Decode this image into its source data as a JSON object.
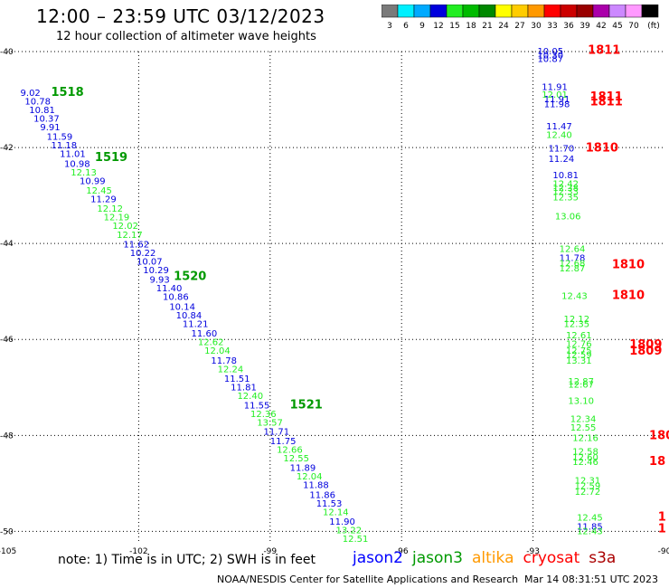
{
  "header": {
    "title": "12:00 – 23:59 UTC 03/12/2023",
    "subtitle": "12 hour collection of altimeter wave heights"
  },
  "footer": {
    "note": "note:  1) Time is in UTC; 2) SWH is in feet",
    "credit": "NOAA/NESDIS Center for Satellite Applications and Research",
    "timestamp": "Mar 14 08:31:51 UTC 2023"
  },
  "satellites": [
    {
      "name": "jason2",
      "color": "#0000ff"
    },
    {
      "name": "jason3",
      "color": "#009900"
    },
    {
      "name": "altika",
      "color": "#ff9900"
    },
    {
      "name": "cryosat",
      "color": "#ff0000"
    },
    {
      "name": "s3a",
      "color": "#aa0000"
    }
  ],
  "colorbar": {
    "ticks": [
      "3",
      "6",
      "9",
      "12",
      "15",
      "18",
      "21",
      "24",
      "27",
      "30",
      "33",
      "36",
      "39",
      "42",
      "45",
      "70",
      "(ft)"
    ],
    "colors": [
      "#7a7a7a",
      "#00f0ff",
      "#00aaff",
      "#0000dd",
      "#22ee22",
      "#00bb00",
      "#008800",
      "#ffff00",
      "#ffcc00",
      "#ff9900",
      "#ff0000",
      "#cc0000",
      "#990000",
      "#aa00aa",
      "#cc88ff",
      "#ff99ff",
      "#000000"
    ]
  },
  "chart_data": {
    "type": "scatter",
    "title": "12:00 – 23:59 UTC 03/12/2023",
    "xlim": [
      -105,
      -90
    ],
    "ylim": [
      -50.2,
      -40
    ],
    "x_ticks": [
      "-105",
      "-102",
      "-99",
      "-96",
      "-93",
      "-90"
    ],
    "y_ticks": [
      "-40",
      "-42",
      "-44",
      "-46",
      "-48",
      "-50"
    ],
    "grid": true,
    "series": [
      {
        "name": "jason3",
        "track": "diagonal",
        "time_labels": [
          {
            "text": "1518",
            "x": -104.0,
            "y": -40.92
          },
          {
            "text": "1519",
            "x": -103.0,
            "y": -42.28
          },
          {
            "text": "1520",
            "x": -101.2,
            "y": -44.76
          },
          {
            "text": "1521",
            "x": -98.55,
            "y": -47.44
          }
        ],
        "points": [
          {
            "x": -104.7,
            "y": -40.92,
            "v": "9.02",
            "c": "#0000dd"
          },
          {
            "x": -104.6,
            "y": -41.1,
            "v": "10.78",
            "c": "#0000dd"
          },
          {
            "x": -104.5,
            "y": -41.28,
            "v": "10.81",
            "c": "#0000dd"
          },
          {
            "x": -104.4,
            "y": -41.46,
            "v": "10.37",
            "c": "#0000dd"
          },
          {
            "x": -104.25,
            "y": -41.64,
            "v": "9.91",
            "c": "#0000dd"
          },
          {
            "x": -104.1,
            "y": -41.84,
            "v": "11.59",
            "c": "#0000dd"
          },
          {
            "x": -104.0,
            "y": -42.02,
            "v": "11.18",
            "c": "#0000dd"
          },
          {
            "x": -103.8,
            "y": -42.2,
            "v": "11.01",
            "c": "#0000dd"
          },
          {
            "x": -103.7,
            "y": -42.4,
            "v": "10.98",
            "c": "#0000dd"
          },
          {
            "x": -103.55,
            "y": -42.58,
            "v": "12.13",
            "c": "#22ee22"
          },
          {
            "x": -103.35,
            "y": -42.76,
            "v": "10.99",
            "c": "#0000dd"
          },
          {
            "x": -103.2,
            "y": -42.96,
            "v": "12.45",
            "c": "#22ee22"
          },
          {
            "x": -103.1,
            "y": -43.14,
            "v": "11.29",
            "c": "#0000dd"
          },
          {
            "x": -102.95,
            "y": -43.34,
            "v": "12.12",
            "c": "#22ee22"
          },
          {
            "x": -102.8,
            "y": -43.52,
            "v": "12.19",
            "c": "#22ee22"
          },
          {
            "x": -102.6,
            "y": -43.7,
            "v": "12.02",
            "c": "#22ee22"
          },
          {
            "x": -102.5,
            "y": -43.88,
            "v": "12.17",
            "c": "#22ee22"
          },
          {
            "x": -102.35,
            "y": -44.08,
            "v": "11.62",
            "c": "#0000dd"
          },
          {
            "x": -102.2,
            "y": -44.26,
            "v": "10.22",
            "c": "#0000dd"
          },
          {
            "x": -102.05,
            "y": -44.44,
            "v": "10.07",
            "c": "#0000dd"
          },
          {
            "x": -101.9,
            "y": -44.62,
            "v": "10.29",
            "c": "#0000dd"
          },
          {
            "x": -101.75,
            "y": -44.82,
            "v": "9.93",
            "c": "#0000dd"
          },
          {
            "x": -101.6,
            "y": -45.0,
            "v": "11.40",
            "c": "#0000dd"
          },
          {
            "x": -101.45,
            "y": -45.18,
            "v": "10.86",
            "c": "#0000dd"
          },
          {
            "x": -101.3,
            "y": -45.38,
            "v": "10.14",
            "c": "#0000dd"
          },
          {
            "x": -101.15,
            "y": -45.56,
            "v": "10.84",
            "c": "#0000dd"
          },
          {
            "x": -101.0,
            "y": -45.74,
            "v": "11.21",
            "c": "#0000dd"
          },
          {
            "x": -100.8,
            "y": -45.94,
            "v": "11.60",
            "c": "#0000dd"
          },
          {
            "x": -100.65,
            "y": -46.12,
            "v": "12.62",
            "c": "#22ee22"
          },
          {
            "x": -100.5,
            "y": -46.3,
            "v": "12.04",
            "c": "#22ee22"
          },
          {
            "x": -100.35,
            "y": -46.5,
            "v": "11.78",
            "c": "#0000dd"
          },
          {
            "x": -100.2,
            "y": -46.68,
            "v": "12.24",
            "c": "#22ee22"
          },
          {
            "x": -100.05,
            "y": -46.88,
            "v": "11.51",
            "c": "#0000dd"
          },
          {
            "x": -99.9,
            "y": -47.06,
            "v": "11.81",
            "c": "#0000dd"
          },
          {
            "x": -99.75,
            "y": -47.24,
            "v": "12.40",
            "c": "#22ee22"
          },
          {
            "x": -99.6,
            "y": -47.44,
            "v": "11.55",
            "c": "#0000dd"
          },
          {
            "x": -99.45,
            "y": -47.62,
            "v": "12.36",
            "c": "#22ee22"
          },
          {
            "x": -99.3,
            "y": -47.8,
            "v": "13.57",
            "c": "#22ee22"
          },
          {
            "x": -99.15,
            "y": -47.98,
            "v": "11.71",
            "c": "#0000dd"
          },
          {
            "x": -99.0,
            "y": -48.18,
            "v": "11.75",
            "c": "#0000dd"
          },
          {
            "x": -98.85,
            "y": -48.36,
            "v": "12.66",
            "c": "#22ee22"
          },
          {
            "x": -98.7,
            "y": -48.54,
            "v": "12.55",
            "c": "#22ee22"
          },
          {
            "x": -98.55,
            "y": -48.74,
            "v": "11.89",
            "c": "#0000dd"
          },
          {
            "x": -98.4,
            "y": -48.92,
            "v": "12.04",
            "c": "#22ee22"
          },
          {
            "x": -98.25,
            "y": -49.1,
            "v": "11.88",
            "c": "#0000dd"
          },
          {
            "x": -98.1,
            "y": -49.3,
            "v": "11.86",
            "c": "#0000dd"
          },
          {
            "x": -97.95,
            "y": -49.48,
            "v": "11.53",
            "c": "#0000dd"
          },
          {
            "x": -97.8,
            "y": -49.66,
            "v": "12.14",
            "c": "#22ee22"
          },
          {
            "x": -97.65,
            "y": -49.86,
            "v": "11.90",
            "c": "#0000dd"
          },
          {
            "x": -97.5,
            "y": -50.04,
            "v": "13.22",
            "c": "#22ee22"
          },
          {
            "x": -97.35,
            "y": -50.22,
            "v": "12.51",
            "c": "#22ee22"
          }
        ]
      },
      {
        "name": "cryosat",
        "track": "right",
        "time_labels": [
          {
            "text": "1811",
            "x": -91.75,
            "y": -40.05,
            "c": "#ff0000"
          },
          {
            "text": "1811",
            "x": -91.7,
            "y": -41.02,
            "c": "#ff0000"
          },
          {
            "text": "1811",
            "x": -91.7,
            "y": -41.12,
            "c": "#ff0000"
          },
          {
            "text": "1810",
            "x": -91.8,
            "y": -42.08,
            "c": "#ff0000"
          },
          {
            "text": "1810",
            "x": -91.2,
            "y": -44.52,
            "c": "#ff0000"
          },
          {
            "text": "1810",
            "x": -91.2,
            "y": -45.16,
            "c": "#ff0000"
          },
          {
            "text": "1809",
            "x": -90.8,
            "y": -46.18,
            "c": "#ff0000"
          },
          {
            "text": "1809",
            "x": -90.8,
            "y": -46.32,
            "c": "#ff0000"
          },
          {
            "text": "180",
            "x": -90.35,
            "y": -48.08,
            "c": "#ff0000"
          },
          {
            "text": "18",
            "x": -90.35,
            "y": -48.62,
            "c": "#ff0000"
          },
          {
            "text": "1",
            "x": -90.15,
            "y": -49.78,
            "c": "#ff0000"
          },
          {
            "text": "1",
            "x": -90.15,
            "y": -50.02,
            "c": "#ff0000"
          }
        ],
        "points": [
          {
            "x": -92.9,
            "y": -40.06,
            "v": "10.05",
            "c": "#0000dd"
          },
          {
            "x": -92.9,
            "y": -40.14,
            "v": "10.30",
            "c": "#0000dd"
          },
          {
            "x": -92.9,
            "y": -40.22,
            "v": "10.87",
            "c": "#0000dd"
          },
          {
            "x": -92.8,
            "y": -40.8,
            "v": "11.91",
            "c": "#0000dd"
          },
          {
            "x": -92.8,
            "y": -40.96,
            "v": "12.01",
            "c": "#22ee22"
          },
          {
            "x": -92.75,
            "y": -41.06,
            "v": "11.91",
            "c": "#0000dd"
          },
          {
            "x": -92.75,
            "y": -41.16,
            "v": "11.98",
            "c": "#0000dd"
          },
          {
            "x": -92.7,
            "y": -41.62,
            "v": "11.47",
            "c": "#0000dd"
          },
          {
            "x": -92.7,
            "y": -41.8,
            "v": "12.40",
            "c": "#22ee22"
          },
          {
            "x": -92.65,
            "y": -42.08,
            "v": "11.70",
            "c": "#0000dd"
          },
          {
            "x": -92.65,
            "y": -42.3,
            "v": "11.24",
            "c": "#0000dd"
          },
          {
            "x": -92.55,
            "y": -42.64,
            "v": "10.81",
            "c": "#0000dd"
          },
          {
            "x": -92.55,
            "y": -42.82,
            "v": "12.42",
            "c": "#22ee22"
          },
          {
            "x": -92.55,
            "y": -42.9,
            "v": "12.38",
            "c": "#22ee22"
          },
          {
            "x": -92.55,
            "y": -42.98,
            "v": "12.33",
            "c": "#22ee22"
          },
          {
            "x": -92.55,
            "y": -43.1,
            "v": "12.35",
            "c": "#22ee22"
          },
          {
            "x": -92.5,
            "y": -43.5,
            "v": "13.06",
            "c": "#22ee22"
          },
          {
            "x": -92.4,
            "y": -44.18,
            "v": "12.64",
            "c": "#22ee22"
          },
          {
            "x": -92.4,
            "y": -44.36,
            "v": "11.78",
            "c": "#0000dd"
          },
          {
            "x": -92.4,
            "y": -44.48,
            "v": "12.68",
            "c": "#22ee22"
          },
          {
            "x": -92.4,
            "y": -44.58,
            "v": "12.87",
            "c": "#22ee22"
          },
          {
            "x": -92.35,
            "y": -45.16,
            "v": "12.43",
            "c": "#22ee22"
          },
          {
            "x": -92.3,
            "y": -45.64,
            "v": "12.12",
            "c": "#22ee22"
          },
          {
            "x": -92.3,
            "y": -45.74,
            "v": "12.35",
            "c": "#22ee22"
          },
          {
            "x": -92.25,
            "y": -45.98,
            "v": "12.61",
            "c": "#22ee22"
          },
          {
            "x": -92.25,
            "y": -46.16,
            "v": "12.76",
            "c": "#22ee22"
          },
          {
            "x": -92.25,
            "y": -46.3,
            "v": "12.75",
            "c": "#22ee22"
          },
          {
            "x": -92.25,
            "y": -46.38,
            "v": "12.59",
            "c": "#22ee22"
          },
          {
            "x": -92.25,
            "y": -46.5,
            "v": "13.31",
            "c": "#22ee22"
          },
          {
            "x": -92.2,
            "y": -46.94,
            "v": "12.87",
            "c": "#22ee22"
          },
          {
            "x": -92.2,
            "y": -47.0,
            "v": "12.67",
            "c": "#22ee22"
          },
          {
            "x": -92.2,
            "y": -47.34,
            "v": "13.10",
            "c": "#22ee22"
          },
          {
            "x": -92.15,
            "y": -47.72,
            "v": "12.34",
            "c": "#22ee22"
          },
          {
            "x": -92.15,
            "y": -47.9,
            "v": "12.55",
            "c": "#22ee22"
          },
          {
            "x": -92.1,
            "y": -48.12,
            "v": "12.16",
            "c": "#22ee22"
          },
          {
            "x": -92.1,
            "y": -48.4,
            "v": "12.58",
            "c": "#22ee22"
          },
          {
            "x": -92.1,
            "y": -48.52,
            "v": "12.60",
            "c": "#22ee22"
          },
          {
            "x": -92.1,
            "y": -48.62,
            "v": "12.46",
            "c": "#22ee22"
          },
          {
            "x": -92.05,
            "y": -49.0,
            "v": "12.31",
            "c": "#22ee22"
          },
          {
            "x": -92.05,
            "y": -49.12,
            "v": "12.59",
            "c": "#22ee22"
          },
          {
            "x": -92.05,
            "y": -49.24,
            "v": "12.72",
            "c": "#22ee22"
          },
          {
            "x": -92.0,
            "y": -49.78,
            "v": "12.45",
            "c": "#22ee22"
          },
          {
            "x": -92.0,
            "y": -49.96,
            "v": "11.85",
            "c": "#0000dd"
          },
          {
            "x": -92.0,
            "y": -50.06,
            "v": "12.43",
            "c": "#22ee22"
          }
        ]
      }
    ]
  }
}
